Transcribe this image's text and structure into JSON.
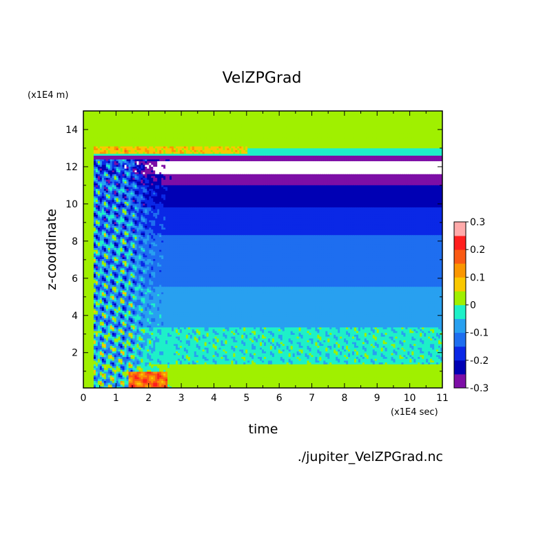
{
  "chart_data": {
    "type": "heatmap",
    "subtype": "filled-contour",
    "title": "VelZPGrad",
    "xlabel": "time",
    "ylabel": "z-coordinate",
    "x_unit": "(x1E4 sec)",
    "y_unit": "(x1E4 m)",
    "source_file": "./jupiter_VelZPGrad.nc",
    "xlim": [
      0,
      11
    ],
    "ylim": [
      0.1,
      15.0
    ],
    "x_ticks": [
      "0",
      "1",
      "2",
      "3",
      "4",
      "5",
      "6",
      "7",
      "8",
      "9",
      "10",
      "11"
    ],
    "y_ticks": [
      "2",
      "4",
      "6",
      "8",
      "10",
      "12",
      "14"
    ],
    "colorbar": {
      "levels": [
        -0.3,
        -0.25,
        -0.2,
        -0.15,
        -0.1,
        -0.05,
        0.0,
        0.05,
        0.1,
        0.15,
        0.2,
        0.25,
        0.3
      ],
      "tick_labels": [
        "0.3",
        "0.2",
        "0.1",
        "0",
        "-0.1",
        "-0.2",
        "-0.3"
      ],
      "colors": [
        "#7d0ea6",
        "#0000b4",
        "#0a28e6",
        "#1e6ef0",
        "#28a0f0",
        "#1ef0c8",
        "#a0f000",
        "#fac800",
        "#fa9600",
        "#fa5a14",
        "#ff1e1e",
        "#ffaaaa"
      ]
    },
    "bands_quasi_steady": [
      {
        "z_from": 0.1,
        "z_to": 1.4,
        "value_range": [
          0.0,
          0.05
        ]
      },
      {
        "z_from": 1.4,
        "z_to": 3.4,
        "value_range": [
          -0.05,
          0.0
        ]
      },
      {
        "z_from": 3.4,
        "z_to": 5.6,
        "value_range": [
          -0.1,
          -0.05
        ]
      },
      {
        "z_from": 5.6,
        "z_to": 8.3,
        "value_range": [
          -0.15,
          -0.1
        ]
      },
      {
        "z_from": 8.3,
        "z_to": 9.8,
        "value_range": [
          -0.2,
          -0.15
        ]
      },
      {
        "z_from": 9.8,
        "z_to": 11.0,
        "value_range": [
          -0.25,
          -0.2
        ]
      },
      {
        "z_from": 11.0,
        "z_to": 11.6,
        "value_range": [
          -0.3,
          -0.25
        ]
      },
      {
        "z_from": 11.6,
        "z_to": 12.3,
        "value_range": "below -0.3"
      },
      {
        "z_from": 12.3,
        "z_to": 12.6,
        "value_range": [
          -0.3,
          -0.25
        ]
      },
      {
        "z_from": 12.6,
        "z_to": 13.0,
        "value_range": [
          -0.05,
          0.0
        ]
      },
      {
        "z_from": 13.0,
        "z_to": 15.0,
        "value_range": [
          0.0,
          0.05
        ]
      }
    ],
    "transient_features": [
      {
        "t_range": [
          0,
          0.3
        ],
        "description": "uniform near-zero before onset",
        "value_range": [
          0.0,
          0.05
        ]
      },
      {
        "t_range": [
          0.3,
          2.7
        ],
        "z_range": [
          0.1,
          12.4
        ],
        "description": "turbulent transient with mixed values"
      },
      {
        "t_range": [
          1.4,
          2.6
        ],
        "z_range": [
          0.1,
          1.0
        ],
        "description": "positive maximum near bottom",
        "value_range": [
          0.15,
          0.25
        ]
      },
      {
        "t_range": [
          0.4,
          5.0
        ],
        "z_range": [
          12.7,
          13.1
        ],
        "description": "positive layer near top",
        "value_range": [
          0.05,
          0.2
        ]
      }
    ]
  }
}
